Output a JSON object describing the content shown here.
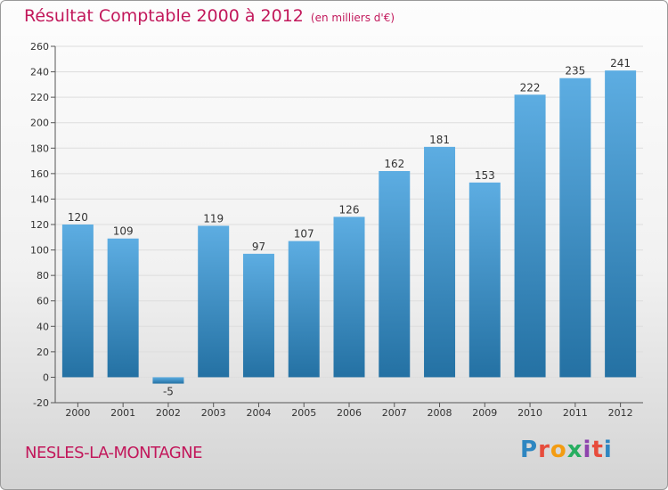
{
  "header": {
    "title": "Résultat Comptable 2000 à 2012",
    "unit": "(en milliers d'€)"
  },
  "footer": {
    "commune": "NESLES-LA-MONTAGNE",
    "brand": "Proxiti",
    "brand_letters": [
      {
        "char": "P",
        "color": "#2e86c1"
      },
      {
        "char": "r",
        "color": "#e74c3c"
      },
      {
        "char": "o",
        "color": "#f39c12"
      },
      {
        "char": "x",
        "color": "#27ae60"
      },
      {
        "char": "i",
        "color": "#8e44ad"
      },
      {
        "char": "t",
        "color": "#e74c3c"
      },
      {
        "char": "i",
        "color": "#2e86c1"
      }
    ]
  },
  "colors": {
    "title": "#c2185b",
    "bar_top": "#5dade2",
    "bar_bottom": "#2471a3",
    "grid": "#dddddd",
    "text": "#333333"
  },
  "chart_data": {
    "type": "bar",
    "title": "Résultat Comptable 2000 à 2012",
    "subtitle": "(en milliers d'€)",
    "xlabel": "",
    "ylabel": "",
    "categories": [
      "2000",
      "2001",
      "2002",
      "2003",
      "2004",
      "2005",
      "2006",
      "2007",
      "2008",
      "2009",
      "2010",
      "2011",
      "2012"
    ],
    "values": [
      120,
      109,
      -5,
      119,
      97,
      107,
      126,
      162,
      181,
      153,
      222,
      235,
      241
    ],
    "ylim": [
      -20,
      260
    ],
    "yticks": [
      -20,
      0,
      20,
      40,
      60,
      80,
      100,
      120,
      140,
      160,
      180,
      200,
      220,
      240,
      260
    ],
    "grid": true,
    "legend": "none"
  }
}
